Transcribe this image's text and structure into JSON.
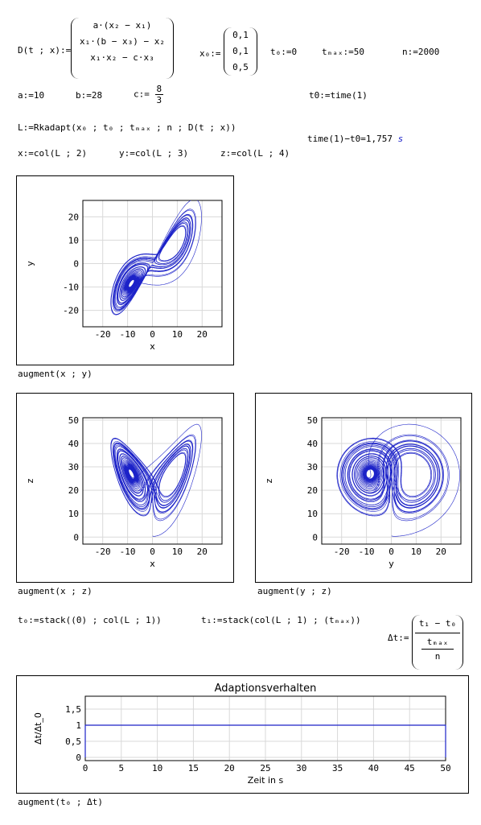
{
  "formulas": {
    "D_lhs": "D(t ; x):=",
    "D_row1": "a·(x₂ − x₁)",
    "D_row2": "x₁·(b − x₃) − x₂",
    "D_row3": "x₁·x₂ − c·x₃",
    "x0_lhs": "x₀:=",
    "x0_vals": [
      "0,1",
      "0,1",
      "0,5"
    ],
    "t0_def": "t₀:=0",
    "tmax_def": "tₘₐₓ:=50",
    "n_def": "n:=2000",
    "a_def": "a:=10",
    "b_def": "b:=28",
    "c_lhs": "c:=",
    "c_num": "8",
    "c_den": "3",
    "t0_time": "t0:=time(1)",
    "L_def": "L:=Rkadapt(x₀ ; t₀ ; tₘₐₓ ; n ; D(t ; x))",
    "time_result": "time(1)−t0=1,757",
    "time_unit": "s",
    "x_col": "x:=col(L ; 2)",
    "y_col": "y:=col(L ; 3)",
    "z_col": "z:=col(L ; 4)",
    "t0_stack": "t₀:=stack((0) ; col(L ; 1))",
    "t1_stack": "t₁:=stack(col(L ; 1) ; (tₘₐₓ))",
    "dt_lhs": "Δt:=",
    "dt_num": "t₁ − t₀",
    "dt_den_num": "tₘₐₓ",
    "dt_den_den": "n"
  },
  "captions": {
    "xy": "augment(x ; y)",
    "xz": "augment(x ; z)",
    "yz": "augment(y ; z)",
    "dt": "augment(t₀ ; Δt)"
  },
  "colors": {
    "series": "#1c22c8",
    "grid": "#d9d9d9",
    "axis": "#000000"
  },
  "chart_data": [
    {
      "type": "line",
      "id": "xy",
      "xlabel": "x",
      "ylabel": "y",
      "xlim": [
        -28,
        28
      ],
      "ylim": [
        -27,
        27
      ],
      "xticks": [
        -20,
        -10,
        0,
        10,
        20
      ],
      "yticks": [
        -20,
        -10,
        0,
        10,
        20
      ],
      "grid": true,
      "series": [
        {
          "description": "Lorenz attractor trajectory projected onto x–y plane",
          "points_generated": "lorenz(a=10,b=28,c=8/3,x0=[0.1,0.1,0.5],t=0..50)"
        }
      ]
    },
    {
      "type": "line",
      "id": "xz",
      "xlabel": "x",
      "ylabel": "z",
      "xlim": [
        -28,
        28
      ],
      "ylim": [
        -3,
        51
      ],
      "xticks": [
        -20,
        -10,
        0,
        10,
        20
      ],
      "yticks": [
        0,
        10,
        20,
        30,
        40,
        50
      ],
      "grid": true,
      "series": [
        {
          "description": "Lorenz attractor trajectory projected onto x–z plane"
        }
      ]
    },
    {
      "type": "line",
      "id": "yz",
      "xlabel": "y",
      "ylabel": "z",
      "xlim": [
        -28,
        28
      ],
      "ylim": [
        -3,
        51
      ],
      "xticks": [
        -20,
        -10,
        0,
        10,
        20
      ],
      "yticks": [
        0,
        10,
        20,
        30,
        40,
        50
      ],
      "grid": true,
      "series": [
        {
          "description": "Lorenz attractor trajectory projected onto y–z plane"
        }
      ]
    },
    {
      "type": "line",
      "id": "dt",
      "title": "Adaptionsverhalten",
      "xlabel": "Zeit in s",
      "ylabel": "Δt/Δt_0",
      "xlim": [
        0,
        50
      ],
      "ylim": [
        -0.1,
        1.9
      ],
      "xticks": [
        0,
        5,
        10,
        15,
        20,
        25,
        30,
        35,
        40,
        45,
        50
      ],
      "yticks": [
        0,
        0.5,
        1,
        1.5
      ],
      "ytick_labels": [
        "0",
        "0,5",
        "1",
        "1,5"
      ],
      "grid": true,
      "series": [
        {
          "x": [
            0,
            0,
            50,
            50
          ],
          "y": [
            0,
            1,
            1,
            0
          ]
        }
      ]
    }
  ]
}
